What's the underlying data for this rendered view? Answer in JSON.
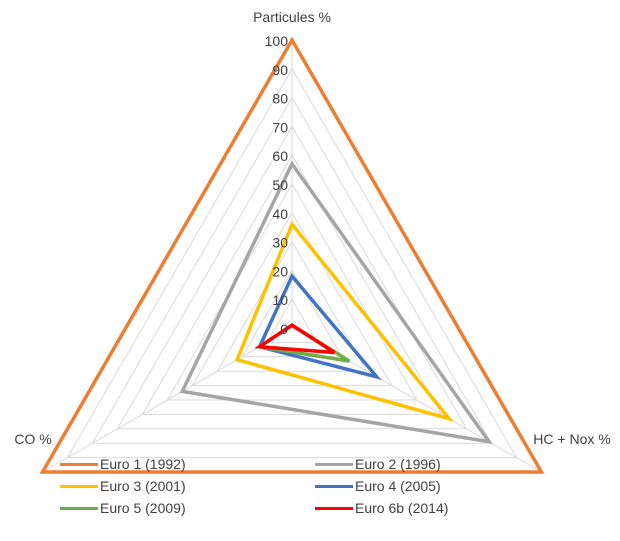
{
  "chart_data": {
    "type": "radar",
    "title": "",
    "axes": [
      "Particules %",
      "HC + Nox %",
      "CO %"
    ],
    "radial_ticks": [
      "0",
      "10",
      "20",
      "30",
      "40",
      "50",
      "60",
      "70",
      "80",
      "90",
      "100"
    ],
    "rmax": 100,
    "grid": true,
    "legend_position": "bottom",
    "series": [
      {
        "name": "Euro 1 (1992)",
        "color": "#ED7D31",
        "values": [
          100,
          100,
          100
        ]
      },
      {
        "name": "Euro 2 (1996)",
        "color": "#A5A5A5",
        "values": [
          57,
          79,
          44
        ]
      },
      {
        "name": "Euro 3 (2001)",
        "color": "#FFC000",
        "values": [
          36,
          63,
          22
        ]
      },
      {
        "name": "Euro 4 (2005)",
        "color": "#4472C4",
        "values": [
          18,
          34,
          13
        ]
      },
      {
        "name": "Euro 5 (2009)",
        "color": "#70AD47",
        "values": [
          1,
          23,
          13
        ]
      },
      {
        "name": "Euro 6b (2014)",
        "color": "#FF0000",
        "values": [
          1,
          17,
          13
        ]
      }
    ]
  }
}
